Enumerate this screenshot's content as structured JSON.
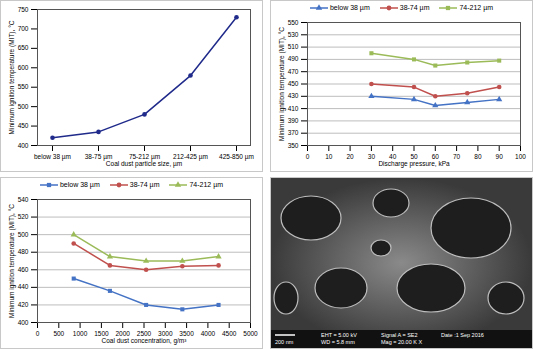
{
  "chart_data": [
    {
      "type": "line",
      "xlabel": "Coal dust particle size, µm",
      "ylabel": "Minimum ignition temperature (MIT), °C",
      "categories": [
        "below 38 µm",
        "38-75 µm",
        "75-212 µm",
        "212-425 µm",
        "425-850 µm"
      ],
      "values": [
        420,
        435,
        480,
        580,
        730
      ],
      "color": "#1f2a8a",
      "marker": "circle",
      "ylim": [
        400,
        750
      ],
      "yticks": [
        400,
        450,
        500,
        550,
        600,
        650,
        700,
        750
      ],
      "grid": false
    },
    {
      "type": "line",
      "xlabel": "Discharge pressure, kPa",
      "ylabel": "Minimum ignition temperature (MIT), °C",
      "x": [
        30,
        50,
        60,
        75,
        90
      ],
      "series": [
        {
          "name": "below 38 µm",
          "color": "#4472c4",
          "marker": "triangle",
          "values": [
            430,
            425,
            415,
            420,
            425
          ]
        },
        {
          "name": "38-74 µm",
          "color": "#c0504d",
          "marker": "circle",
          "values": [
            450,
            445,
            430,
            435,
            445
          ]
        },
        {
          "name": "74-212 µm",
          "color": "#9bbb59",
          "marker": "square",
          "values": [
            500,
            490,
            480,
            485,
            488
          ]
        }
      ],
      "xlim": [
        0,
        100
      ],
      "xticks": [
        0,
        10,
        20,
        30,
        40,
        50,
        60,
        70,
        80,
        90,
        100
      ],
      "ylim": [
        350,
        550
      ],
      "yticks": [
        350,
        370,
        390,
        410,
        430,
        450,
        470,
        490,
        510,
        530,
        550
      ],
      "grid": true,
      "legend": "top"
    },
    {
      "type": "line",
      "xlabel": "Coal dust concentration, g/m³",
      "ylabel": "Minimum ignition temperature (MIT), °C",
      "x": [
        850,
        1700,
        2550,
        3400,
        4250
      ],
      "series": [
        {
          "name": "below 38 µm",
          "color": "#4472c4",
          "marker": "square",
          "values": [
            450,
            436,
            420,
            415,
            420
          ]
        },
        {
          "name": "38-74 µm",
          "color": "#c0504d",
          "marker": "circle",
          "values": [
            490,
            465,
            460,
            464,
            465
          ]
        },
        {
          "name": "74-212 µm",
          "color": "#9bbb59",
          "marker": "triangle",
          "values": [
            500,
            475,
            470,
            470,
            475
          ]
        }
      ],
      "xlim": [
        0,
        5000
      ],
      "xticks": [
        0,
        500,
        1000,
        1500,
        2000,
        2500,
        3000,
        3500,
        4000,
        4500,
        5000
      ],
      "ylim": [
        400,
        540
      ],
      "yticks": [
        400,
        420,
        440,
        460,
        480,
        500,
        520,
        540
      ],
      "grid": true,
      "legend": "top"
    }
  ],
  "sem_image": {
    "scale_bar": "200 nm",
    "info": [
      "EHT = 5.00 kV",
      "WD = 5.8 mm",
      "Signal A = SE2",
      "Mag = 20.00 K X",
      "Date :1 Sep 2016"
    ]
  }
}
